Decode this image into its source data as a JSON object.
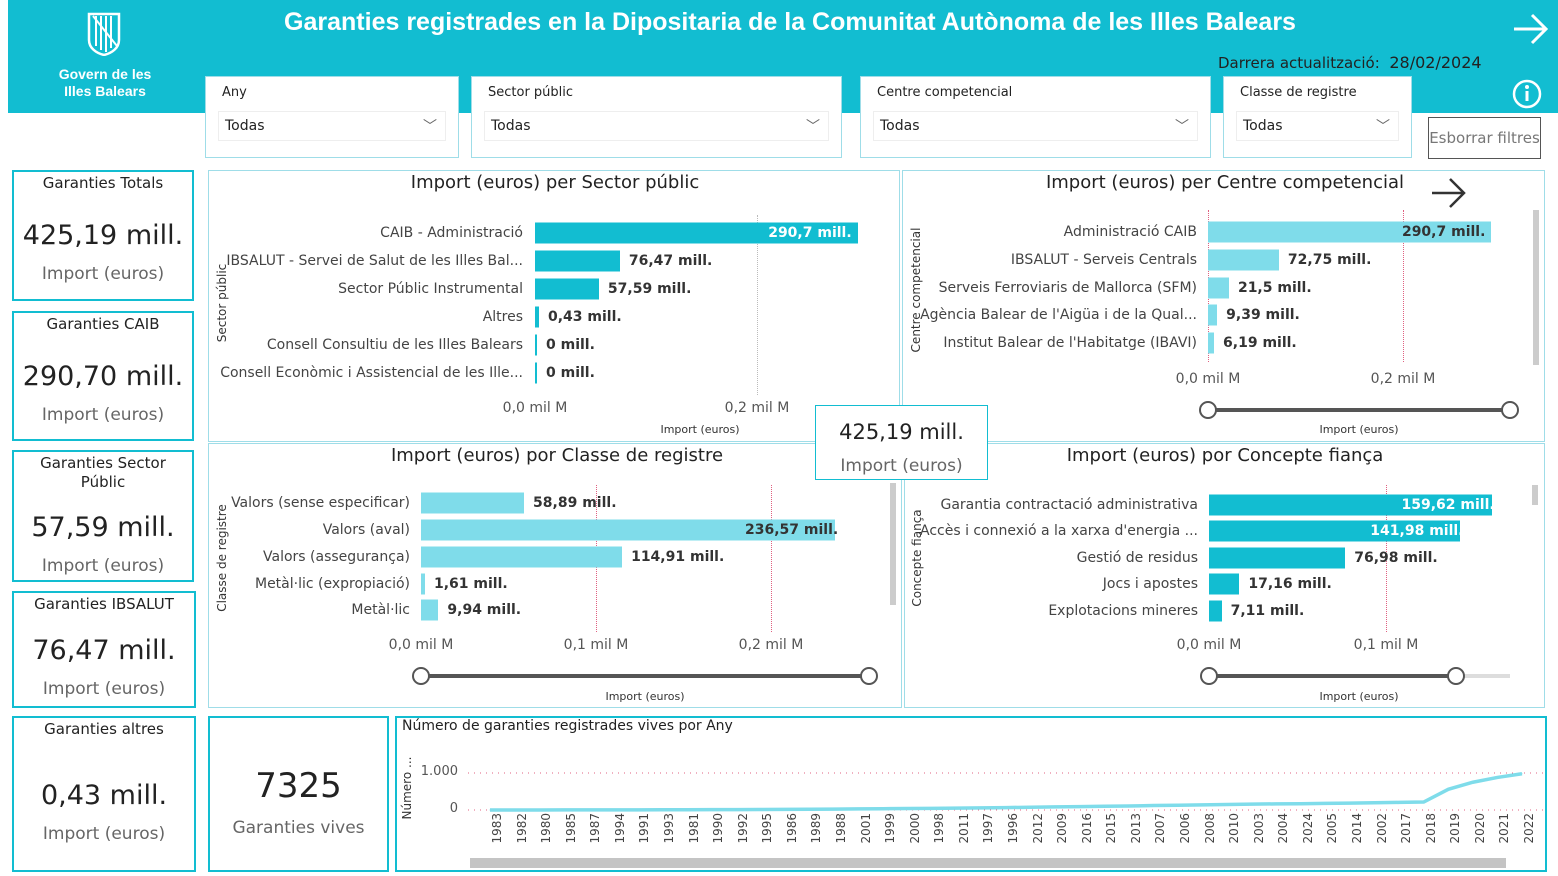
{
  "header": {
    "title": "Garanties registrades en la Dipositaria de la Comunitat Autònoma de les Illes Balears",
    "logo_text": "Govern de les Illes Balears",
    "logo_line1": "Govern de les",
    "logo_line2": "Illes Balears",
    "last_update_label": "Darrera actualització:",
    "last_update_value": "28/02/2024",
    "arrow_icon": "arrow-right-icon",
    "info_icon": "info-icon"
  },
  "slicers": [
    {
      "label": "Any",
      "value": "Todas"
    },
    {
      "label": "Sector públic",
      "value": "Todas"
    },
    {
      "label": "Centre competencial",
      "value": "Todas"
    },
    {
      "label": "Classe de registre",
      "value": "Todas"
    }
  ],
  "clear_button": "Esborrar filtres",
  "cards": [
    {
      "title": "Garanties Totals",
      "value": "425,19 mill.",
      "sub": "Import (euros)"
    },
    {
      "title": "Garanties CAIB",
      "value": "290,70 mill.",
      "sub": "Import (euros)"
    },
    {
      "title": "Garanties Sector Públic",
      "value": "57,59 mill.",
      "sub": "Import (euros)"
    },
    {
      "title": "Garanties IBSALUT",
      "value": "76,47 mill.",
      "sub": "Import (euros)"
    },
    {
      "title": "Garanties altres",
      "value": "0,43 mill.",
      "sub": "Import (euros)"
    }
  ],
  "count_card": {
    "value": "7325",
    "sub": "Garanties vives"
  },
  "overlay_card": {
    "value": "425,19 mill.",
    "sub": "Import (euros)"
  },
  "colors": {
    "brand": "#12BDD1",
    "bar_dark": "#12BDD1",
    "bar_light": "#7FDCEA",
    "line": "#7FDCEA"
  },
  "chart_data": [
    {
      "type": "bar",
      "title": "Import (euros) per Sector públic",
      "ylabel": "Sector públic",
      "xlabel": "Import (euros)",
      "unit": "mill.",
      "xticks": [
        "0,0 mil M",
        "0,2 mil M"
      ],
      "categories": [
        "CAIB - Administració",
        "IBSALUT - Servei de Salut de les Illes Bal...",
        "Sector Públic Instrumental",
        "Altres",
        "Consell Consultiu de les Illes Balears",
        "Consell Econòmic i Assistencial de les Ille..."
      ],
      "values": [
        290.7,
        76.47,
        57.59,
        0.43,
        0,
        0
      ],
      "labels": [
        "290,7 mill.",
        "76,47 mill.",
        "57,59 mill.",
        "0,43 mill.",
        "0 mill.",
        "0 mill."
      ]
    },
    {
      "type": "bar",
      "title": "Import (euros) per Centre competencial",
      "ylabel": "Centre competencial",
      "xlabel": "Import (euros)",
      "unit": "mill.",
      "xticks": [
        "0,0 mil M",
        "0,2 mil M"
      ],
      "categories": [
        "Administració CAIB",
        "IBSALUT - Serveis Centrals",
        "Serveis Ferroviaris de Mallorca (SFM)",
        "Agència Balear de l'Aigüa i de la Qual...",
        "Institut Balear de l'Habitatge (IBAVI)"
      ],
      "values": [
        290.7,
        72.75,
        21.5,
        9.39,
        6.19
      ],
      "labels": [
        "290,7 mill.",
        "72,75 mill.",
        "21,5 mill.",
        "9,39 mill.",
        "6,19 mill."
      ]
    },
    {
      "type": "bar",
      "title": "Import (euros) por Classe de registre",
      "ylabel": "Classe de registre",
      "xlabel": "Import (euros)",
      "unit": "mill.",
      "xticks": [
        "0,0 mil M",
        "0,1 mil M",
        "0,2 mil M"
      ],
      "categories": [
        "Valors (sense especificar)",
        "Valors (aval)",
        "Valors (assegurança)",
        "Metàl·lic (expropiació)",
        "Metàl·lic"
      ],
      "values": [
        58.89,
        236.57,
        114.91,
        1.61,
        9.94
      ],
      "labels": [
        "58,89 mill.",
        "236,57 mill.",
        "114,91 mill.",
        "1,61 mill.",
        "9,94 mill."
      ]
    },
    {
      "type": "bar",
      "title": "Import (euros) por Concepte fiança",
      "ylabel": "Concepte fiança",
      "xlabel": "Import (euros)",
      "unit": "mill.",
      "xticks": [
        "0,0 mil M",
        "0,1 mil M"
      ],
      "categories": [
        "Garantia contractació administrativa",
        "Accès i connexió a la xarxa d'energia ...",
        "Gestió de residus",
        "Jocs i apostes",
        "Explotacions mineres"
      ],
      "values": [
        159.62,
        141.98,
        76.98,
        17.16,
        7.11
      ],
      "labels": [
        "159,62 mill.",
        "141,98 mill.",
        "76,98 mill.",
        "17,16 mill.",
        "7,11 mill."
      ]
    },
    {
      "type": "line",
      "title": "Número de garanties registrades vives por Any",
      "ylabel": "Número ...",
      "yticks": [
        "0",
        "1.000"
      ],
      "ylim": [
        0,
        1000
      ],
      "x": [
        "1983",
        "1982",
        "1980",
        "1985",
        "1987",
        "1994",
        "1991",
        "1993",
        "1981",
        "1990",
        "1992",
        "1995",
        "1986",
        "1989",
        "1988",
        "2001",
        "1999",
        "2000",
        "1998",
        "2011",
        "1997",
        "1996",
        "2012",
        "2009",
        "2016",
        "2015",
        "2013",
        "2007",
        "2006",
        "2008",
        "2010",
        "2003",
        "2004",
        "2024",
        "2005",
        "2014",
        "2002",
        "2017",
        "2018",
        "2019",
        "2020",
        "2021",
        "2022"
      ],
      "y": [
        1,
        1,
        1,
        2,
        3,
        4,
        5,
        6,
        7,
        9,
        11,
        14,
        17,
        20,
        25,
        30,
        35,
        40,
        45,
        52,
        58,
        65,
        75,
        85,
        92,
        100,
        108,
        120,
        130,
        140,
        150,
        160,
        165,
        170,
        180,
        185,
        195,
        205,
        215,
        560,
        750,
        880,
        980
      ]
    }
  ]
}
